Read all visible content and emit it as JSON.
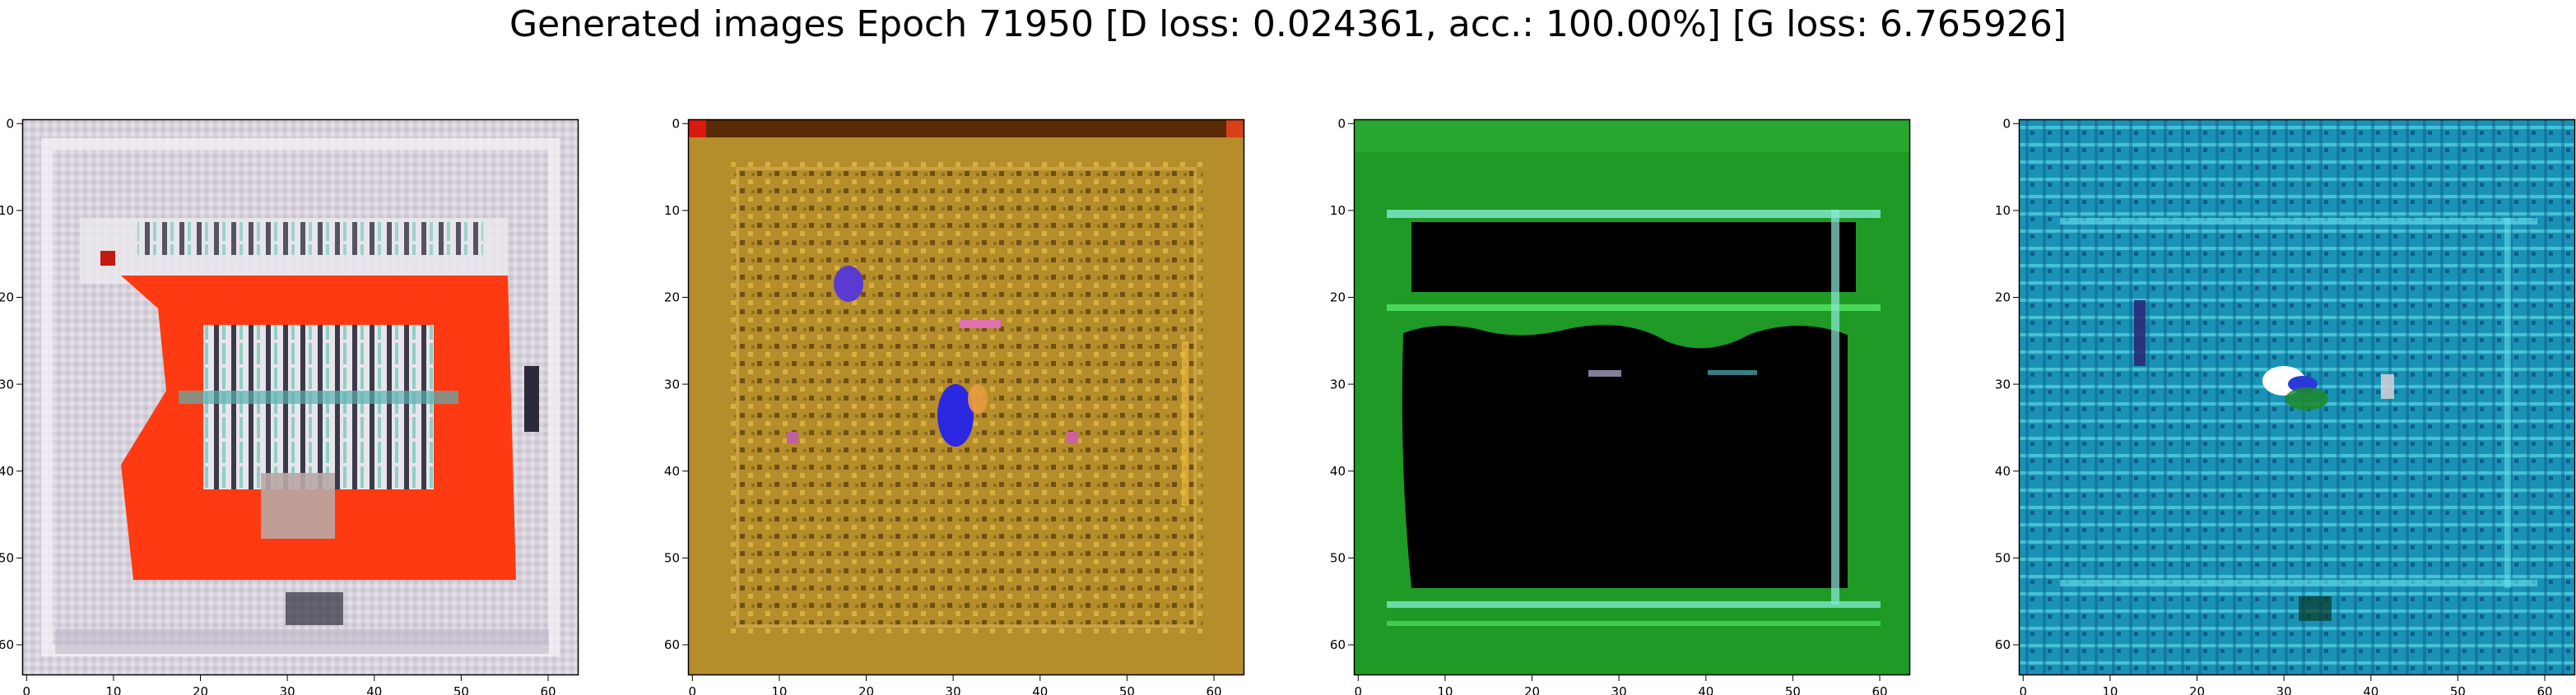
{
  "figure": {
    "title": "Generated images Epoch 71950 [D loss: 0.024361, acc.: 100.00%] [G loss: 6.765926]"
  },
  "axes": {
    "ticks": [
      0,
      10,
      20,
      30,
      40,
      50,
      60
    ],
    "range": [
      0,
      64
    ]
  },
  "panels": [
    {
      "id": "panel-1",
      "description_colors": {
        "base": "#d9d3dc",
        "accent": "#ff3a12",
        "dark": "#2a2a3a",
        "teal": "#7fc7c4"
      }
    },
    {
      "id": "panel-2",
      "description_colors": {
        "base": "#b8902a",
        "accent": "#3a2ad8",
        "dark": "#3a2408",
        "pink": "#e070b0"
      }
    },
    {
      "id": "panel-3",
      "description_colors": {
        "base": "#1e9a24",
        "accent": "#7ee8c8",
        "dark": "#000000",
        "bright": "#4bd85a"
      }
    },
    {
      "id": "panel-4",
      "description_colors": {
        "base": "#1a94b8",
        "accent": "#6ae6f0",
        "dark": "#0a3a6a",
        "white": "#ffffff"
      }
    }
  ]
}
